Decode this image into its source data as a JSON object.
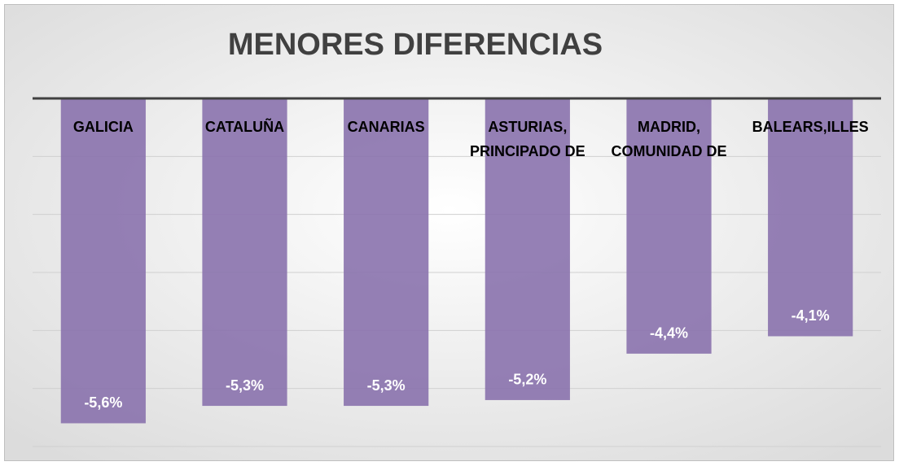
{
  "chart_data": {
    "type": "bar",
    "title": "MENORES DIFERENCIAS",
    "categories": [
      "GALICIA",
      "CATALUÑA",
      "CANARIAS",
      "ASTURIAS, PRINCIPADO DE",
      "MADRID, COMUNIDAD DE",
      "BALEARS,ILLES"
    ],
    "values": [
      -5.6,
      -5.3,
      -5.3,
      -5.2,
      -4.4,
      -4.1
    ],
    "value_labels": [
      "-5,6%",
      "-5,3%",
      "-5,3%",
      "-5,2%",
      "-4,4%",
      "-4,1%"
    ],
    "color": "#8a72ad",
    "ylim": [
      -6,
      0
    ],
    "yticks": [
      0,
      -1,
      -2,
      -3,
      -4,
      -5,
      -6
    ],
    "grid": true
  }
}
